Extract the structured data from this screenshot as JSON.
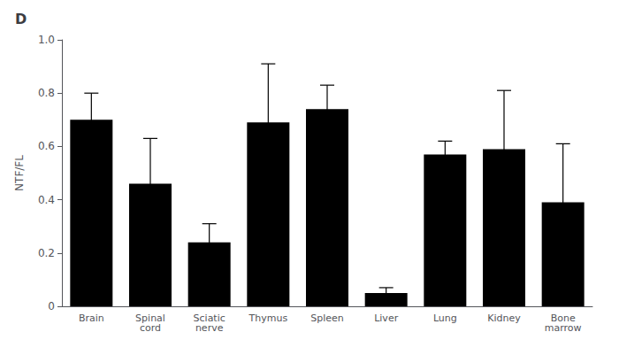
{
  "chart_data": {
    "type": "bar",
    "title": "D",
    "categories": [
      "Brain",
      "Spinal\ncord",
      "Sciatic\nnerve",
      "Thymus",
      "Spleen",
      "Liver",
      "Lung",
      "Kidney",
      "Bone\nmarrow"
    ],
    "values": [
      0.7,
      0.46,
      0.24,
      0.69,
      0.74,
      0.05,
      0.57,
      0.59,
      0.39
    ],
    "errors": [
      0.1,
      0.17,
      0.07,
      0.22,
      0.09,
      0.02,
      0.05,
      0.22,
      0.22
    ],
    "color": "#000000",
    "ylabel": "NTF/FL",
    "ylim": [
      0,
      1.0
    ],
    "yticks": [
      0,
      0.2,
      0.4,
      0.6,
      0.8,
      {
        "value": 1.0,
        "label": "1.0"
      }
    ],
    "grid": false
  }
}
